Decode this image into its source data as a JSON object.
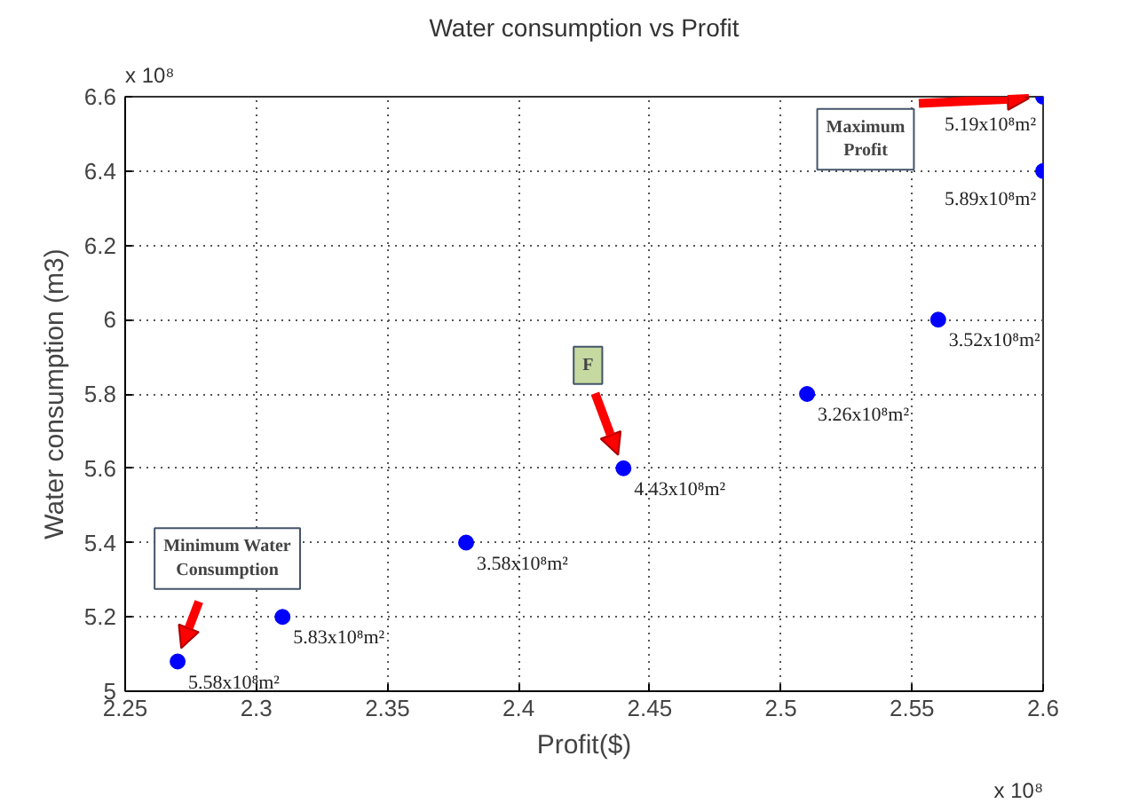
{
  "chart_data": {
    "type": "scatter",
    "title": "Water consumption vs Profit",
    "xlabel": "Profit($)",
    "ylabel": "Water consumption (m3)",
    "x": [
      2.27,
      2.31,
      2.38,
      2.44,
      2.51,
      2.56,
      2.6,
      2.6
    ],
    "series": [
      {
        "color": "#0000ff",
        "values": [
          5.08,
          5.2,
          5.4,
          5.6,
          5.8,
          6.0,
          6.4,
          6.6
        ],
        "value_labels": [
          "5.58x10⁸m²",
          "5.83x10⁸m²",
          "3.58x10⁸m²",
          "4.43x10⁸m²",
          "3.26x10⁸m²",
          "3.52x10⁸m²",
          "5.89x10⁸m²",
          "5.19x10⁸m²"
        ]
      }
    ],
    "xlim": [
      2.25,
      2.6
    ],
    "ylim": [
      5,
      6.6
    ],
    "xticks": [
      2.25,
      2.3,
      2.35,
      2.4,
      2.45,
      2.5,
      2.55,
      2.6
    ],
    "yticks": [
      5,
      5.2,
      5.4,
      5.6,
      5.8,
      6,
      6.2,
      6.4,
      6.6
    ],
    "grid": true,
    "marker": "circle",
    "annotations": [
      "x 10⁸",
      "x 10⁸",
      {
        "text": "Minimum Water Consumption",
        "x": 2.27,
        "y": 5.08
      },
      {
        "text": "F",
        "x": 2.44,
        "y": 5.6
      },
      {
        "text": "Maximum Profit",
        "x": 2.6,
        "y": 6.6
      }
    ]
  }
}
